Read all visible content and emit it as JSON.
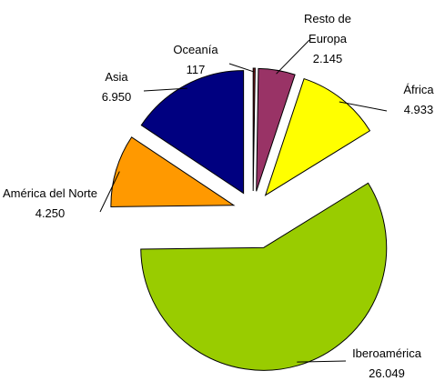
{
  "chart_data": {
    "type": "pie",
    "categories": [
      "Oceanía",
      "Resto de Europa",
      "África",
      "Iberoamérica",
      "América del Norte",
      "Asia"
    ],
    "values": [
      117,
      2145,
      4933,
      26049,
      4250,
      6950
    ],
    "value_labels": [
      "117",
      "2.145",
      "4.933",
      "26.049",
      "4.250",
      "6.950"
    ],
    "colors": [
      "#7a1a1a",
      "#993366",
      "#ffff00",
      "#99cc00",
      "#ff9900",
      "#000080"
    ]
  }
}
